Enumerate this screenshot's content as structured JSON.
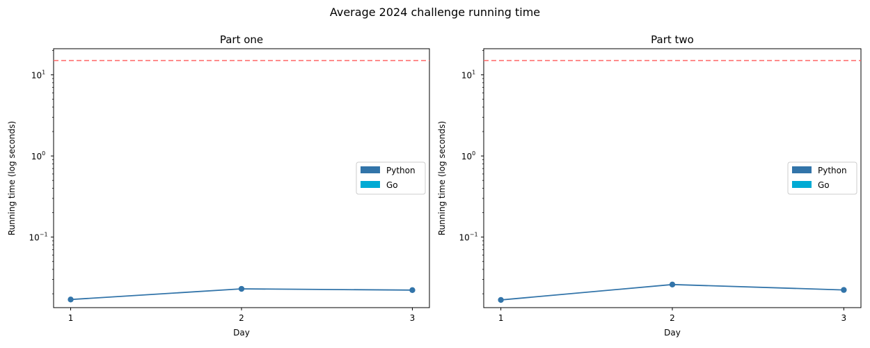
{
  "figure": {
    "suptitle": "Average 2024 challenge running time"
  },
  "colors": {
    "python": "#3274a9",
    "go": "#00aad4",
    "threshold": "#ff6666"
  },
  "chart_data": [
    {
      "type": "line",
      "title": "Part one",
      "xlabel": "Day",
      "ylabel": "Running time (log seconds)",
      "yscale": "log",
      "ylim": [
        0.0135,
        21
      ],
      "xlim": [
        0.9,
        3.1
      ],
      "xticks": [
        "1",
        "2",
        "3"
      ],
      "yticks": [
        {
          "value": 0.1,
          "base": "10",
          "exp": "−1"
        },
        {
          "value": 1,
          "base": "10",
          "exp": "0"
        },
        {
          "value": 10,
          "base": "10",
          "exp": "1"
        }
      ],
      "threshold": 15,
      "series": [
        {
          "name": "Python",
          "x": [
            1,
            2,
            3
          ],
          "values": [
            0.017,
            0.023,
            0.0222
          ]
        },
        {
          "name": "Go",
          "x": [],
          "values": []
        }
      ],
      "legend": {
        "position": "center-right",
        "entries": [
          "Python",
          "Go"
        ]
      },
      "grid": false
    },
    {
      "type": "line",
      "title": "Part two",
      "xlabel": "Day",
      "ylabel": "Running time (log seconds)",
      "yscale": "log",
      "ylim": [
        0.0135,
        21
      ],
      "xlim": [
        0.9,
        3.1
      ],
      "xticks": [
        "1",
        "2",
        "3"
      ],
      "yticks": [
        {
          "value": 0.1,
          "base": "10",
          "exp": "−1"
        },
        {
          "value": 1,
          "base": "10",
          "exp": "0"
        },
        {
          "value": 10,
          "base": "10",
          "exp": "1"
        }
      ],
      "threshold": 15,
      "series": [
        {
          "name": "Python",
          "x": [
            1,
            2,
            3
          ],
          "values": [
            0.0168,
            0.026,
            0.0223
          ]
        },
        {
          "name": "Go",
          "x": [],
          "values": []
        }
      ],
      "legend": {
        "position": "center-right",
        "entries": [
          "Python",
          "Go"
        ]
      },
      "grid": false
    }
  ]
}
